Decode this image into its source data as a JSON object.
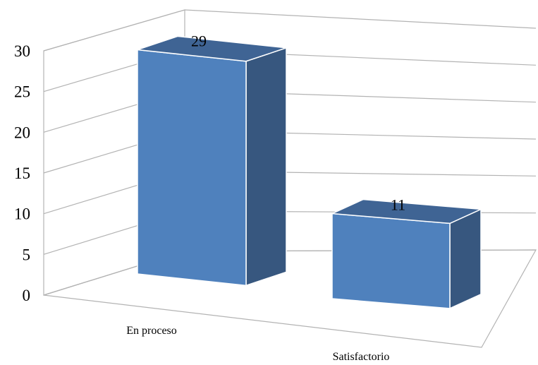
{
  "chart_data": {
    "type": "bar",
    "style": "3d-column",
    "categories": [
      "En proceso",
      "Satisfactorio"
    ],
    "values": [
      29,
      11
    ],
    "data_labels": [
      "29",
      "11"
    ],
    "ylim": [
      0,
      30
    ],
    "y_ticks": [
      "0",
      "5",
      "10",
      "15",
      "20",
      "25",
      "30"
    ],
    "grid": true,
    "legend": false,
    "title": "",
    "xlabel": "",
    "ylabel": "",
    "colors": {
      "front": "#4f81bd",
      "side": "#37577f",
      "top": "#3f6494",
      "edge": "#ffffff",
      "gridline": "#b3b3b3"
    }
  }
}
